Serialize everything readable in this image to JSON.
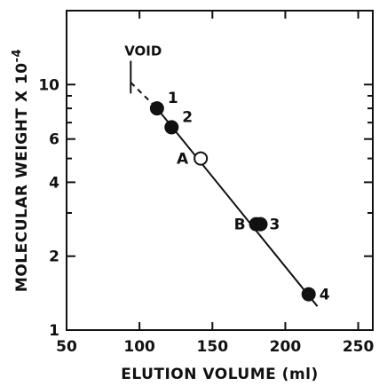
{
  "chart_data": {
    "type": "scatter",
    "title": "",
    "xlabel": "ELUTION VOLUME (ml)",
    "ylabel": "MOLECULAR WEIGHT X 10",
    "ylabel_exponent": "-4",
    "x_scale": "linear",
    "y_scale": "log",
    "xlim": [
      50,
      260
    ],
    "ylim": [
      1,
      20
    ],
    "x_ticks": [
      50,
      100,
      150,
      200,
      250
    ],
    "y_ticks": [
      1,
      2,
      4,
      6,
      10
    ],
    "points": [
      {
        "label": "1",
        "x": 112,
        "y": 8.0,
        "fill": "filled"
      },
      {
        "label": "2",
        "x": 122,
        "y": 6.7,
        "fill": "filled"
      },
      {
        "label": "A",
        "x": 142,
        "y": 5.0,
        "fill": "open"
      },
      {
        "label": "B",
        "x": 180,
        "y": 2.7,
        "fill": "filled"
      },
      {
        "label": "3",
        "x": 183,
        "y": 2.7,
        "fill": "filled"
      },
      {
        "label": "4",
        "x": 216,
        "y": 1.4,
        "fill": "filled"
      }
    ],
    "fit_line": {
      "x": [
        112,
        222
      ],
      "y": [
        8.0,
        1.25
      ]
    },
    "extrapolation": {
      "style": "dashed",
      "x": [
        94,
        112
      ],
      "y": [
        10.2,
        8.0
      ]
    },
    "void_marker": {
      "label": "VOID",
      "x": 94,
      "y_range": [
        9.2,
        12.5
      ]
    },
    "grid": false,
    "colors": {
      "ink": "#111111",
      "background": "#ffffff"
    }
  }
}
